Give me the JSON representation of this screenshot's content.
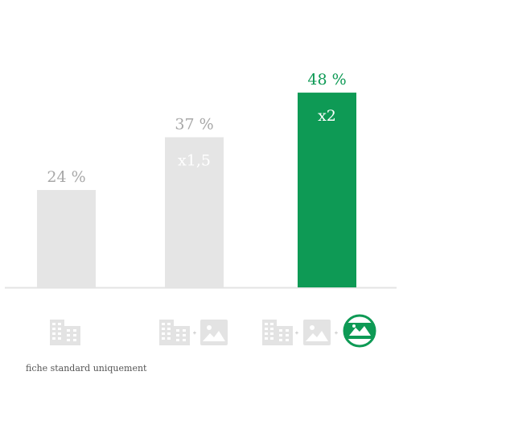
{
  "chart_data": {
    "type": "bar",
    "categories": [
      "fiche standard uniquement",
      "fiche + photos",
      "fiche + photos + visite virtuelle"
    ],
    "values": [
      24,
      37,
      48
    ],
    "value_labels": [
      "24 %",
      "37 %",
      "48 %"
    ],
    "multiplier_labels": [
      "",
      "x1,5",
      "x2"
    ],
    "ylim": [
      0,
      50
    ],
    "bar_colors": [
      "#e5e5e5",
      "#e5e5e5",
      "#0e9a55"
    ],
    "value_label_colors": [
      "#a8a8a8",
      "#a8a8a8",
      "#0e9a55"
    ],
    "axis_color": "#e3e3e3",
    "highlight_index": 2
  },
  "icons": [
    [
      "building-icon"
    ],
    [
      "building-icon",
      "photo-icon"
    ],
    [
      "building-icon",
      "photo-icon",
      "virtual-tour-icon"
    ]
  ],
  "plus_sign": "+",
  "caption": "fiche standard uniquement"
}
